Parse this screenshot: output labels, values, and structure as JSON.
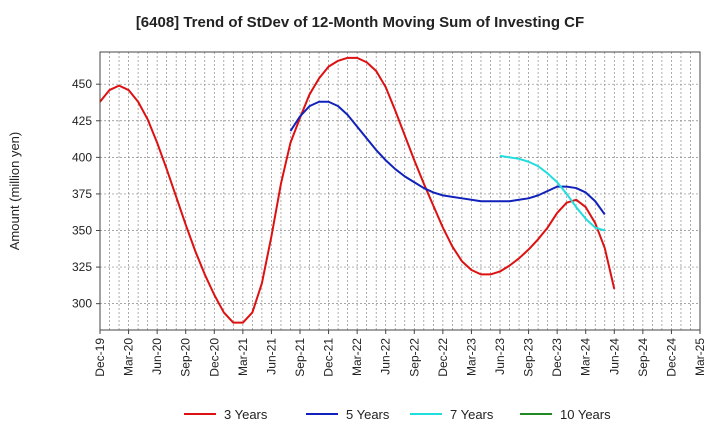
{
  "chart_data": {
    "type": "line",
    "title": "[6408]  Trend of StDev of 12-Month Moving Sum of Investing CF",
    "ylabel": "Amount (million yen)",
    "xlabel": "",
    "ylim": [
      282,
      472
    ],
    "x_range": [
      "2019-12",
      "2025-03"
    ],
    "yticks": [
      300,
      325,
      350,
      375,
      400,
      425,
      450
    ],
    "xticks": [
      "Dec-19",
      "Mar-20",
      "Jun-20",
      "Sep-20",
      "Dec-20",
      "Mar-21",
      "Jun-21",
      "Sep-21",
      "Dec-21",
      "Mar-22",
      "Jun-22",
      "Sep-22",
      "Dec-22",
      "Mar-23",
      "Jun-23",
      "Sep-23",
      "Dec-23",
      "Mar-24",
      "Jun-24",
      "Sep-24",
      "Dec-24",
      "Mar-25"
    ],
    "grid": true,
    "legend_position": "bottom",
    "series": [
      {
        "name": "3 Years",
        "color": "#dd1111",
        "points": [
          [
            "2019-12",
            438
          ],
          [
            "2020-01",
            446
          ],
          [
            "2020-02",
            449
          ],
          [
            "2020-03",
            446
          ],
          [
            "2020-04",
            438
          ],
          [
            "2020-05",
            426
          ],
          [
            "2020-06",
            410
          ],
          [
            "2020-07",
            392
          ],
          [
            "2020-08",
            373
          ],
          [
            "2020-09",
            354
          ],
          [
            "2020-10",
            336
          ],
          [
            "2020-11",
            320
          ],
          [
            "2020-12",
            306
          ],
          [
            "2021-01",
            294
          ],
          [
            "2021-02",
            287
          ],
          [
            "2021-03",
            287
          ],
          [
            "2021-04",
            294
          ],
          [
            "2021-05",
            314
          ],
          [
            "2021-06",
            346
          ],
          [
            "2021-07",
            382
          ],
          [
            "2021-08",
            410
          ],
          [
            "2021-09",
            427
          ],
          [
            "2021-10",
            443
          ],
          [
            "2021-11",
            454
          ],
          [
            "2021-12",
            462
          ],
          [
            "2022-01",
            466
          ],
          [
            "2022-02",
            468
          ],
          [
            "2022-03",
            468
          ],
          [
            "2022-04",
            465
          ],
          [
            "2022-05",
            459
          ],
          [
            "2022-06",
            448
          ],
          [
            "2022-07",
            432
          ],
          [
            "2022-08",
            415
          ],
          [
            "2022-09",
            398
          ],
          [
            "2022-10",
            382
          ],
          [
            "2022-11",
            367
          ],
          [
            "2022-12",
            352
          ],
          [
            "2023-01",
            339
          ],
          [
            "2023-02",
            329
          ],
          [
            "2023-03",
            323
          ],
          [
            "2023-04",
            320
          ],
          [
            "2023-05",
            320
          ],
          [
            "2023-06",
            322
          ],
          [
            "2023-07",
            326
          ],
          [
            "2023-08",
            331
          ],
          [
            "2023-09",
            337
          ],
          [
            "2023-10",
            344
          ],
          [
            "2023-11",
            352
          ],
          [
            "2023-12",
            362
          ],
          [
            "2024-01",
            369
          ],
          [
            "2024-02",
            371
          ],
          [
            "2024-03",
            366
          ],
          [
            "2024-04",
            355
          ],
          [
            "2024-05",
            338
          ],
          [
            "2024-06",
            310
          ]
        ]
      },
      {
        "name": "5 Years",
        "color": "#1122bb",
        "points": [
          [
            "2021-08",
            418
          ],
          [
            "2021-09",
            428
          ],
          [
            "2021-10",
            435
          ],
          [
            "2021-11",
            438
          ],
          [
            "2021-12",
            438
          ],
          [
            "2022-01",
            435
          ],
          [
            "2022-02",
            429
          ],
          [
            "2022-03",
            421
          ],
          [
            "2022-04",
            413
          ],
          [
            "2022-05",
            405
          ],
          [
            "2022-06",
            398
          ],
          [
            "2022-07",
            392
          ],
          [
            "2022-08",
            387
          ],
          [
            "2022-09",
            383
          ],
          [
            "2022-10",
            379
          ],
          [
            "2022-11",
            376
          ],
          [
            "2022-12",
            374
          ],
          [
            "2023-01",
            373
          ],
          [
            "2023-02",
            372
          ],
          [
            "2023-03",
            371
          ],
          [
            "2023-04",
            370
          ],
          [
            "2023-05",
            370
          ],
          [
            "2023-06",
            370
          ],
          [
            "2023-07",
            370
          ],
          [
            "2023-08",
            371
          ],
          [
            "2023-09",
            372
          ],
          [
            "2023-10",
            374
          ],
          [
            "2023-11",
            377
          ],
          [
            "2023-12",
            380
          ],
          [
            "2024-01",
            380
          ],
          [
            "2024-02",
            379
          ],
          [
            "2024-03",
            376
          ],
          [
            "2024-04",
            370
          ],
          [
            "2024-05",
            361
          ]
        ]
      },
      {
        "name": "7 Years",
        "color": "#22dddd",
        "points": [
          [
            "2023-06",
            401
          ],
          [
            "2023-07",
            400
          ],
          [
            "2023-08",
            399
          ],
          [
            "2023-09",
            397
          ],
          [
            "2023-10",
            394
          ],
          [
            "2023-11",
            389
          ],
          [
            "2023-12",
            383
          ],
          [
            "2024-01",
            375
          ],
          [
            "2024-02",
            366
          ],
          [
            "2024-03",
            358
          ],
          [
            "2024-04",
            352
          ],
          [
            "2024-05",
            350
          ]
        ]
      },
      {
        "name": "10 Years",
        "color": "#228822",
        "points": []
      }
    ]
  }
}
